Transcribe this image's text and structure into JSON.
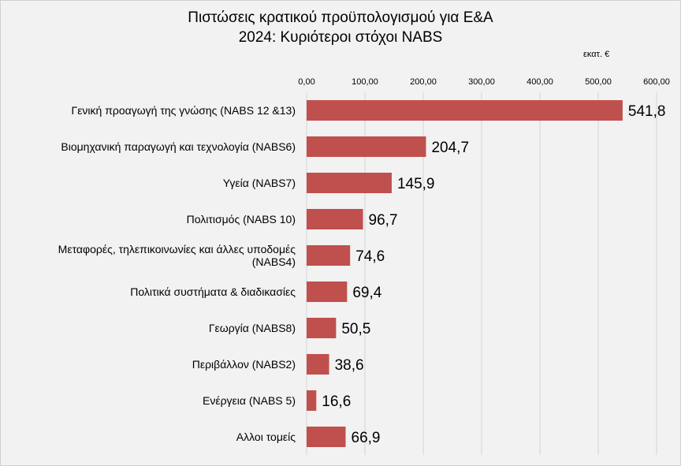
{
  "chart_data": {
    "type": "bar",
    "orientation": "horizontal",
    "title_line1": "Πιστώσεις  κρατικού  προϋπολογισμού  για Ε&Α",
    "title_line2": "2024: Κυριότεροι  στόχοι NABS",
    "unit_label": "εκατ. €",
    "xlim": [
      0,
      600
    ],
    "ticks": [
      0,
      100,
      200,
      300,
      400,
      500,
      600
    ],
    "tick_labels": [
      "0,00",
      "100,00",
      "200,00",
      "300,00",
      "400,00",
      "500,00",
      "600,00"
    ],
    "categories": [
      [
        "Γενική  προαγωγή της γνώσης (NABS 12 &13)"
      ],
      [
        "Βιομηχανική  παραγωγή και τεχνολογία (NABS6)"
      ],
      [
        "Υγεία (NABS7)"
      ],
      [
        "Πολιτισμός (NABS 10)"
      ],
      [
        "Μεταφορές, τηλεπικοινωνίες  και άλλες υποδομές",
        "(NABS4)"
      ],
      [
        "Πολιτικά  συστήματα  & διαδικασίες"
      ],
      [
        "Γεωργία (NABS8)"
      ],
      [
        "Περιβάλλον (NABS2)"
      ],
      [
        "Ενέργεια (NABS 5)"
      ],
      [
        "Αλλοι τομείς"
      ]
    ],
    "values": [
      541.8,
      204.7,
      145.9,
      96.7,
      74.6,
      69.4,
      50.5,
      38.6,
      16.6,
      66.9
    ],
    "value_labels": [
      "541,8",
      "204,7",
      "145,9",
      "96,7",
      "74,6",
      "69,4",
      "50,5",
      "38,6",
      "16,6",
      "66,9"
    ],
    "bar_color": "#c0504d",
    "grid": true
  }
}
